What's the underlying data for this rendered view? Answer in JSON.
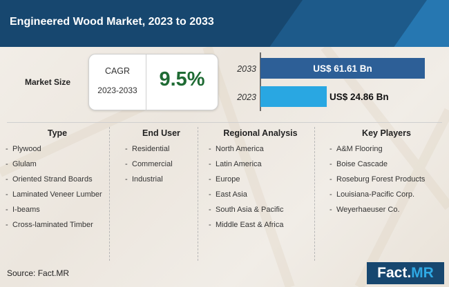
{
  "title": "Engineered Wood Market, 2023 to 2033",
  "market_size_label": "Market Size",
  "cagr": {
    "label": "CAGR",
    "years": "2023-2033",
    "value": "9.5%"
  },
  "chart_data": {
    "type": "bar",
    "orientation": "horizontal",
    "categories": [
      "2033",
      "2023"
    ],
    "values": [
      61.61,
      24.86
    ],
    "data_labels": [
      "US$ 61.61 Bn",
      "US$ 24.86 Bn"
    ],
    "colors": [
      "#2d5f97",
      "#29a7e2"
    ],
    "xlim": [
      0,
      61.61
    ]
  },
  "columns": [
    {
      "title": "Type",
      "items": [
        "Plywood",
        "Glulam",
        "Oriented Strand Boards",
        "Laminated Veneer Lumber",
        "I-beams",
        "Cross-laminated Timber"
      ]
    },
    {
      "title": "End User",
      "items": [
        "Residential",
        "Commercial",
        "Industrial"
      ]
    },
    {
      "title": "Regional Analysis",
      "items": [
        "North America",
        "Latin America",
        "Europe",
        "East Asia",
        "South Asia & Pacific",
        "Middle East & Africa"
      ]
    },
    {
      "title": "Key Players",
      "items": [
        "A&M Flooring",
        "Boise Cascade",
        "Roseburg Forest Products",
        "Louisiana-Pacific Corp.",
        "Weyerhaeuser Co."
      ]
    }
  ],
  "source": "Source: Fact.MR",
  "logo": {
    "main": "Fact.",
    "accent": "MR"
  }
}
